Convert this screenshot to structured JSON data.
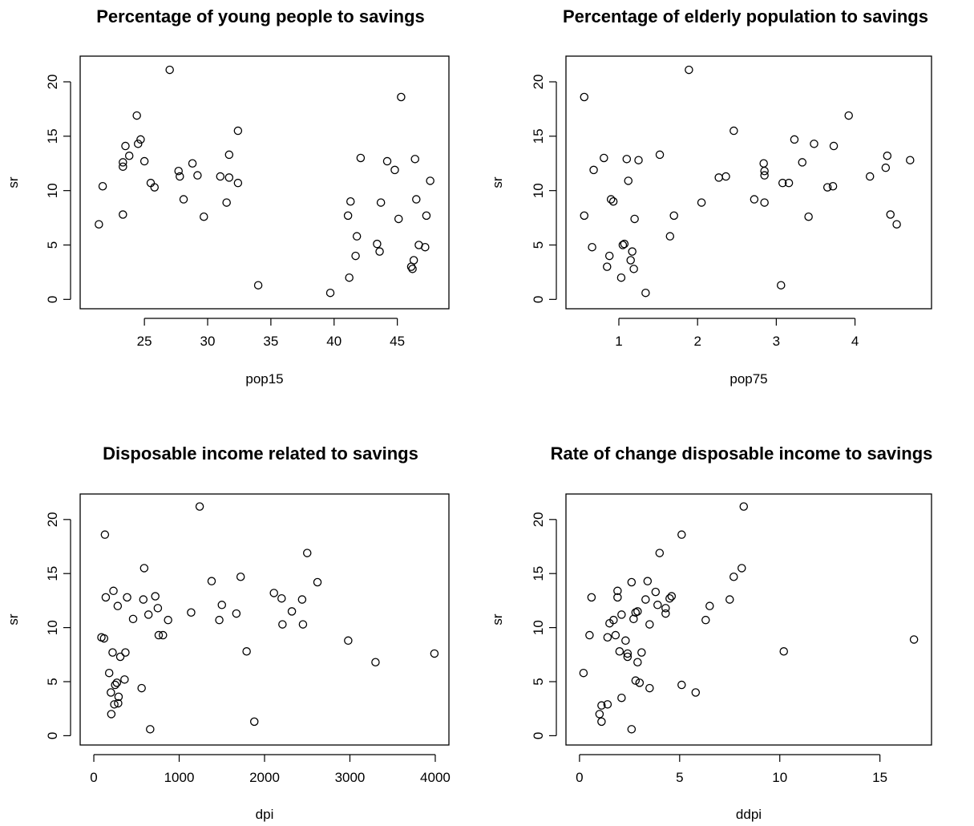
{
  "chart_data": [
    {
      "type": "scatter",
      "title": "Percentage of young people to savings",
      "xlabel": "pop15",
      "ylabel": "sr",
      "xlim": [
        21.0,
        48.0
      ],
      "ylim": [
        0,
        21.5
      ],
      "xticks": [
        25,
        30,
        35,
        40,
        45
      ],
      "yticks": [
        0,
        5,
        10,
        15,
        20
      ],
      "points": [
        [
          21.4,
          6.9
        ],
        [
          21.7,
          10.4
        ],
        [
          23.3,
          12.2
        ],
        [
          23.3,
          12.6
        ],
        [
          23.3,
          7.8
        ],
        [
          23.5,
          14.1
        ],
        [
          23.8,
          13.2
        ],
        [
          24.4,
          16.9
        ],
        [
          24.5,
          14.3
        ],
        [
          24.7,
          14.7
        ],
        [
          25.0,
          12.7
        ],
        [
          25.5,
          10.7
        ],
        [
          25.8,
          10.3
        ],
        [
          27.0,
          21.1
        ],
        [
          27.7,
          11.8
        ],
        [
          27.8,
          11.3
        ],
        [
          28.1,
          9.2
        ],
        [
          28.8,
          12.5
        ],
        [
          29.2,
          11.4
        ],
        [
          29.7,
          7.6
        ],
        [
          31.0,
          11.3
        ],
        [
          31.5,
          8.9
        ],
        [
          31.7,
          11.2
        ],
        [
          31.7,
          13.3
        ],
        [
          32.4,
          10.7
        ],
        [
          32.4,
          15.5
        ],
        [
          34.0,
          1.3
        ],
        [
          39.7,
          0.6
        ],
        [
          41.1,
          7.7
        ],
        [
          41.2,
          2.0
        ],
        [
          41.3,
          9.0
        ],
        [
          41.7,
          4.0
        ],
        [
          41.8,
          5.8
        ],
        [
          42.1,
          13.0
        ],
        [
          43.4,
          5.1
        ],
        [
          43.6,
          4.4
        ],
        [
          43.7,
          8.9
        ],
        [
          44.2,
          12.7
        ],
        [
          44.8,
          11.9
        ],
        [
          45.1,
          7.4
        ],
        [
          45.3,
          18.6
        ],
        [
          46.1,
          3.0
        ],
        [
          46.2,
          2.8
        ],
        [
          46.3,
          3.6
        ],
        [
          46.4,
          12.9
        ],
        [
          46.5,
          9.2
        ],
        [
          46.7,
          5.0
        ],
        [
          47.2,
          4.8
        ],
        [
          47.3,
          7.7
        ],
        [
          47.6,
          10.9
        ]
      ]
    },
    {
      "type": "scatter",
      "title": "Percentage of elderly population to savings",
      "xlabel": "pop75",
      "ylabel": "sr",
      "xlim": [
        0.5,
        4.8
      ],
      "ylim": [
        0,
        21.5
      ],
      "xticks": [
        1,
        2,
        3,
        4
      ],
      "yticks": [
        0,
        5,
        10,
        15,
        20
      ],
      "points": [
        [
          0.56,
          18.6
        ],
        [
          0.56,
          7.7
        ],
        [
          0.66,
          4.8
        ],
        [
          0.68,
          11.9
        ],
        [
          0.81,
          13.0
        ],
        [
          0.85,
          3.0
        ],
        [
          0.88,
          4.0
        ],
        [
          0.9,
          9.2
        ],
        [
          0.93,
          9.0
        ],
        [
          1.03,
          2.0
        ],
        [
          1.05,
          5.0
        ],
        [
          1.07,
          5.1
        ],
        [
          1.1,
          12.9
        ],
        [
          1.12,
          10.9
        ],
        [
          1.15,
          3.6
        ],
        [
          1.17,
          4.4
        ],
        [
          1.19,
          2.8
        ],
        [
          1.2,
          7.4
        ],
        [
          1.25,
          12.8
        ],
        [
          1.34,
          0.6
        ],
        [
          1.52,
          13.3
        ],
        [
          1.65,
          5.8
        ],
        [
          1.7,
          7.7
        ],
        [
          1.89,
          21.1
        ],
        [
          2.05,
          8.9
        ],
        [
          2.27,
          11.2
        ],
        [
          2.36,
          11.3
        ],
        [
          2.46,
          15.5
        ],
        [
          2.72,
          9.2
        ],
        [
          2.84,
          12.5
        ],
        [
          2.85,
          11.8
        ],
        [
          2.85,
          11.4
        ],
        [
          2.85,
          8.9
        ],
        [
          3.06,
          1.3
        ],
        [
          3.08,
          10.7
        ],
        [
          3.16,
          10.7
        ],
        [
          3.23,
          14.7
        ],
        [
          3.33,
          12.6
        ],
        [
          3.41,
          7.6
        ],
        [
          3.48,
          14.3
        ],
        [
          3.65,
          10.3
        ],
        [
          3.72,
          10.4
        ],
        [
          3.73,
          14.1
        ],
        [
          3.92,
          16.9
        ],
        [
          4.19,
          11.3
        ],
        [
          4.39,
          12.1
        ],
        [
          4.41,
          13.2
        ],
        [
          4.45,
          7.8
        ],
        [
          4.53,
          6.9
        ],
        [
          4.7,
          12.8
        ]
      ]
    },
    {
      "type": "scatter",
      "title": "Disposable income related to savings",
      "xlabel": "dpi",
      "ylabel": "sr",
      "xlim": [
        0,
        4000
      ],
      "ylim": [
        0,
        21.5
      ],
      "xticks": [
        0,
        1000,
        2000,
        3000,
        4000
      ],
      "yticks": [
        0,
        5,
        10,
        15,
        20
      ],
      "points": [
        [
          89,
          9.1
        ],
        [
          120,
          9.0
        ],
        [
          130,
          18.6
        ],
        [
          140,
          12.8
        ],
        [
          180,
          5.8
        ],
        [
          200,
          4.0
        ],
        [
          205,
          2.0
        ],
        [
          220,
          7.7
        ],
        [
          230,
          13.4
        ],
        [
          240,
          2.9
        ],
        [
          250,
          4.7
        ],
        [
          270,
          4.9
        ],
        [
          280,
          12.0
        ],
        [
          285,
          3.0
        ],
        [
          290,
          3.6
        ],
        [
          310,
          7.3
        ],
        [
          360,
          5.2
        ],
        [
          370,
          7.7
        ],
        [
          390,
          12.8
        ],
        [
          460,
          10.8
        ],
        [
          560,
          4.4
        ],
        [
          580,
          12.6
        ],
        [
          590,
          15.5
        ],
        [
          640,
          11.2
        ],
        [
          660,
          0.6
        ],
        [
          720,
          12.9
        ],
        [
          750,
          11.8
        ],
        [
          760,
          9.3
        ],
        [
          810,
          9.3
        ],
        [
          870,
          10.7
        ],
        [
          1140,
          11.4
        ],
        [
          1240,
          21.2
        ],
        [
          1380,
          14.3
        ],
        [
          1470,
          10.7
        ],
        [
          1500,
          12.1
        ],
        [
          1670,
          11.3
        ],
        [
          1720,
          14.7
        ],
        [
          1790,
          7.8
        ],
        [
          1880,
          1.3
        ],
        [
          2110,
          13.2
        ],
        [
          2200,
          12.7
        ],
        [
          2210,
          10.3
        ],
        [
          2320,
          11.5
        ],
        [
          2440,
          12.6
        ],
        [
          2450,
          10.3
        ],
        [
          2500,
          16.9
        ],
        [
          2620,
          14.2
        ],
        [
          2980,
          8.8
        ],
        [
          3300,
          6.8
        ],
        [
          3990,
          7.6
        ]
      ]
    },
    {
      "type": "scatter",
      "title": "Rate of change disposable income to savings",
      "xlabel": "ddpi",
      "ylabel": "sr",
      "xlim": [
        0,
        16.9
      ],
      "ylim": [
        0,
        21.5
      ],
      "xticks": [
        0,
        5,
        10,
        15
      ],
      "yticks": [
        0,
        5,
        10,
        15,
        20
      ],
      "points": [
        [
          0.2,
          5.8
        ],
        [
          0.5,
          9.3
        ],
        [
          0.6,
          12.8
        ],
        [
          1.0,
          2.0
        ],
        [
          1.1,
          2.8
        ],
        [
          1.1,
          1.3
        ],
        [
          1.4,
          2.9
        ],
        [
          1.4,
          9.1
        ],
        [
          1.5,
          10.4
        ],
        [
          1.7,
          10.7
        ],
        [
          1.8,
          9.3
        ],
        [
          1.9,
          12.8
        ],
        [
          1.9,
          13.4
        ],
        [
          2.0,
          7.8
        ],
        [
          2.1,
          3.5
        ],
        [
          2.1,
          11.2
        ],
        [
          2.3,
          8.8
        ],
        [
          2.4,
          7.6
        ],
        [
          2.4,
          7.3
        ],
        [
          2.6,
          0.6
        ],
        [
          2.6,
          14.2
        ],
        [
          2.7,
          10.8
        ],
        [
          2.8,
          11.4
        ],
        [
          2.8,
          5.1
        ],
        [
          2.9,
          11.5
        ],
        [
          2.9,
          6.8
        ],
        [
          3.0,
          4.9
        ],
        [
          3.1,
          7.7
        ],
        [
          3.3,
          12.6
        ],
        [
          3.4,
          14.3
        ],
        [
          3.5,
          4.4
        ],
        [
          3.5,
          10.3
        ],
        [
          3.8,
          13.3
        ],
        [
          3.9,
          12.1
        ],
        [
          4.0,
          16.9
        ],
        [
          4.3,
          11.8
        ],
        [
          4.3,
          11.3
        ],
        [
          4.5,
          12.7
        ],
        [
          4.6,
          12.9
        ],
        [
          5.1,
          18.6
        ],
        [
          5.1,
          4.7
        ],
        [
          5.8,
          4.0
        ],
        [
          6.3,
          10.7
        ],
        [
          6.5,
          12.0
        ],
        [
          7.5,
          12.6
        ],
        [
          7.7,
          14.7
        ],
        [
          8.1,
          15.5
        ],
        [
          8.2,
          21.2
        ],
        [
          10.2,
          7.8
        ],
        [
          16.7,
          8.9
        ]
      ]
    }
  ]
}
